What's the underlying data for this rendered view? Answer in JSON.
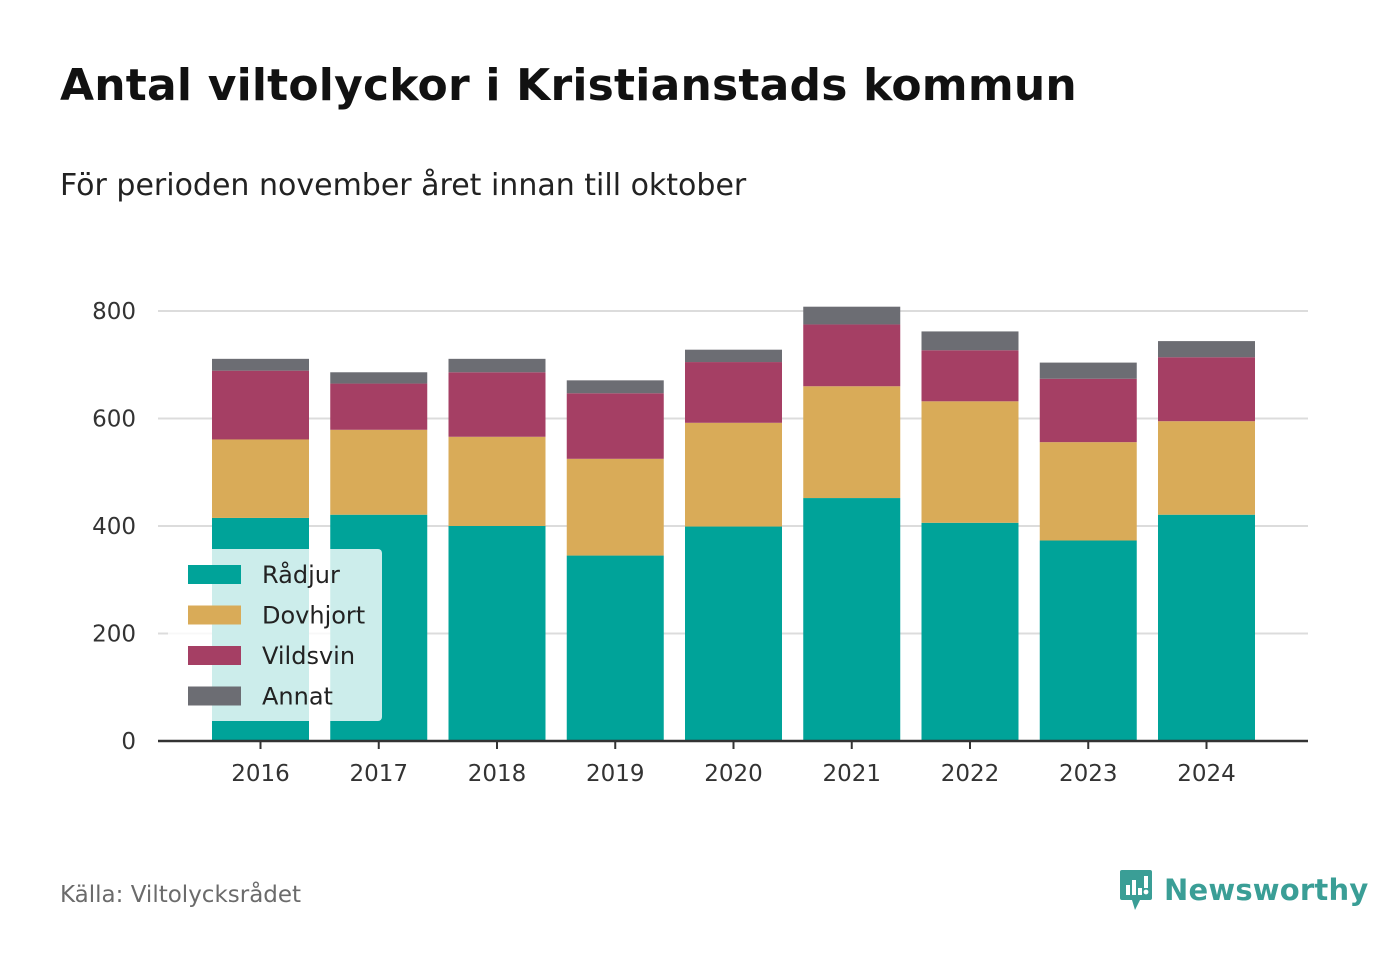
{
  "chart_data": {
    "type": "bar",
    "stacked": true,
    "title": "Antal viltolyckor i Kristianstads kommun",
    "subtitle": "För perioden november året innan till oktober",
    "categories": [
      "2016",
      "2017",
      "2018",
      "2019",
      "2020",
      "2021",
      "2022",
      "2023",
      "2024"
    ],
    "series": [
      {
        "name": "Rådjur",
        "color": "#00a399",
        "values": [
          415,
          421,
          400,
          345,
          399,
          452,
          406,
          373,
          421
        ]
      },
      {
        "name": "Dovhjort",
        "color": "#d9ab58",
        "values": [
          146,
          158,
          166,
          180,
          193,
          208,
          226,
          183,
          174
        ]
      },
      {
        "name": "Vildsvin",
        "color": "#a53f64",
        "values": [
          128,
          86,
          120,
          122,
          113,
          115,
          95,
          118,
          119
        ]
      },
      {
        "name": "Annat",
        "color": "#6c6d73",
        "values": [
          22,
          21,
          25,
          24,
          23,
          33,
          35,
          30,
          30
        ]
      }
    ],
    "yticks": [
      0,
      200,
      400,
      600,
      800
    ],
    "ylim": [
      0,
      900
    ],
    "grid": true,
    "legend_position": "bottom-left"
  },
  "source": "Källa: Viltolycksrådet",
  "brand": {
    "name": "Newsworthy",
    "icon": "newsworthy-logo-icon",
    "color": "#3a9e96"
  }
}
